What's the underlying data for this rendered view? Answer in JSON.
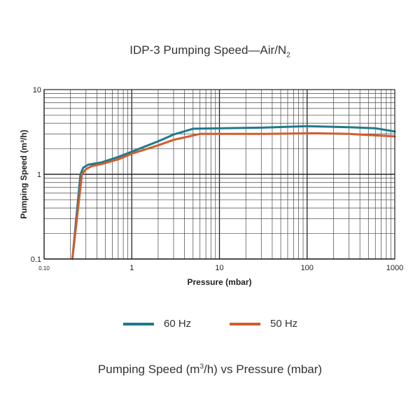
{
  "chart_data": {
    "type": "line",
    "title_prefix": "IDP-3 Pumping Speed—Air/N",
    "title_sub": "2",
    "xlabel": "Pressure (mbar)",
    "ylabel": "Pumping Speed (m³/h)",
    "x_scale": "log",
    "y_scale": "log",
    "xlim": [
      0.1,
      1000
    ],
    "ylim": [
      0.1,
      10
    ],
    "grid": true,
    "x_ticks": [
      {
        "value": 0.1,
        "label": "0.10"
      },
      {
        "value": 1,
        "label": "1"
      },
      {
        "value": 10,
        "label": "10"
      },
      {
        "value": 100,
        "label": "100"
      },
      {
        "value": 1000,
        "label": "1000"
      }
    ],
    "y_ticks": [
      {
        "value": 0.1,
        "label": "0.1"
      },
      {
        "value": 1,
        "label": "1"
      },
      {
        "value": 10,
        "label": "10"
      }
    ],
    "legend_position": "bottom",
    "series": [
      {
        "name": "60 Hz",
        "color": "#1f7a8c",
        "points": [
          [
            0.21,
            0.1
          ],
          [
            0.26,
            1.0
          ],
          [
            0.28,
            1.2
          ],
          [
            0.32,
            1.3
          ],
          [
            0.45,
            1.38
          ],
          [
            0.7,
            1.6
          ],
          [
            1.0,
            1.85
          ],
          [
            2.0,
            2.45
          ],
          [
            3.0,
            2.95
          ],
          [
            5.0,
            3.45
          ],
          [
            10,
            3.5
          ],
          [
            30,
            3.55
          ],
          [
            100,
            3.7
          ],
          [
            300,
            3.6
          ],
          [
            600,
            3.5
          ],
          [
            1000,
            3.2
          ]
        ]
      },
      {
        "name": "50 Hz",
        "color": "#d25c2e",
        "points": [
          [
            0.21,
            0.1
          ],
          [
            0.27,
            1.0
          ],
          [
            0.3,
            1.15
          ],
          [
            0.35,
            1.25
          ],
          [
            0.45,
            1.32
          ],
          [
            0.7,
            1.5
          ],
          [
            1.0,
            1.75
          ],
          [
            2.0,
            2.2
          ],
          [
            3.0,
            2.55
          ],
          [
            6.0,
            3.0
          ],
          [
            10,
            3.0
          ],
          [
            30,
            3.0
          ],
          [
            120,
            3.05
          ],
          [
            300,
            3.0
          ],
          [
            1000,
            2.8
          ]
        ]
      }
    ]
  },
  "legend": {
    "item_60": "60 Hz",
    "item_50": "50 Hz"
  },
  "caption": {
    "text_before": "Pumping Speed (m",
    "sup": "3",
    "text_after": "/h) vs Pressure (mbar)"
  }
}
